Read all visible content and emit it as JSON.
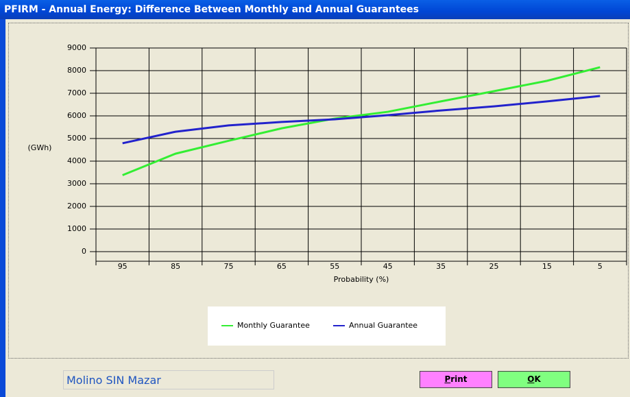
{
  "window": {
    "title": "PFIRM - Annual Energy: Difference Between Monthly and Annual Guarantees"
  },
  "chart_data": {
    "type": "line",
    "ylabel": "(GWh)",
    "xlabel": "Probability (%)",
    "categories": [
      "95",
      "85",
      "75",
      "65",
      "55",
      "45",
      "35",
      "25",
      "15",
      "5"
    ],
    "ylim": [
      0,
      9000
    ],
    "yticks": [
      0,
      1000,
      2000,
      3000,
      4000,
      5000,
      6000,
      7000,
      8000,
      9000
    ],
    "grid": true,
    "legend": "bottom",
    "series": [
      {
        "name": "Monthly Guarantee",
        "color": "#33ee33",
        "values": [
          3380,
          4330,
          4900,
          5450,
          5880,
          6180,
          6640,
          7090,
          7550,
          8150
        ]
      },
      {
        "name": "Annual Guarantee",
        "color": "#2222cc",
        "values": [
          4790,
          5300,
          5580,
          5730,
          5850,
          6030,
          6240,
          6420,
          6640,
          6880
        ]
      }
    ]
  },
  "footer": {
    "project": "Molino SIN Mazar",
    "buttons": [
      "Print",
      "OK"
    ]
  }
}
